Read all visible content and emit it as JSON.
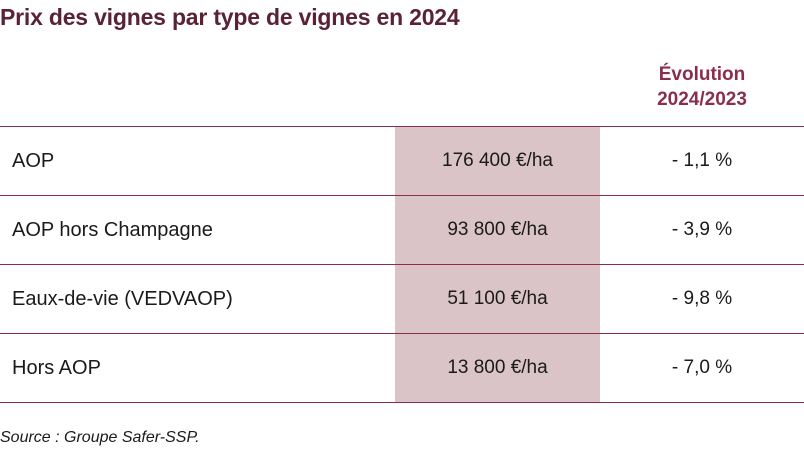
{
  "chart_data": {
    "type": "table",
    "title": "Prix des vignes par type de vignes en 2024",
    "columns": [
      "",
      "",
      "Évolution 2024/2023"
    ],
    "column_header_lines": [
      "Évolution",
      "2024/2023"
    ],
    "rows": [
      {
        "label": "AOP",
        "price": "176 400 €/ha",
        "evolution": "- 1,1 %"
      },
      {
        "label": "AOP hors Champagne",
        "price": "93 800 €/ha",
        "evolution": "- 3,9 %"
      },
      {
        "label": "Eaux-de-vie (VEDVAOP)",
        "price": "51 100 €/ha",
        "evolution": "- 9,8 %"
      },
      {
        "label": "Hors AOP",
        "price": "13 800 €/ha",
        "evolution": "- 7,0 %"
      }
    ],
    "values": [
      176400,
      93800,
      51100,
      13800
    ],
    "evolution_values": [
      -1.1,
      -3.9,
      -9.8,
      -7.0
    ],
    "source": "Source : Groupe Safer-SSP.",
    "colors": {
      "title": "#5a2236",
      "accent": "#8b2e4b",
      "shade": "#dbc4c8"
    }
  }
}
